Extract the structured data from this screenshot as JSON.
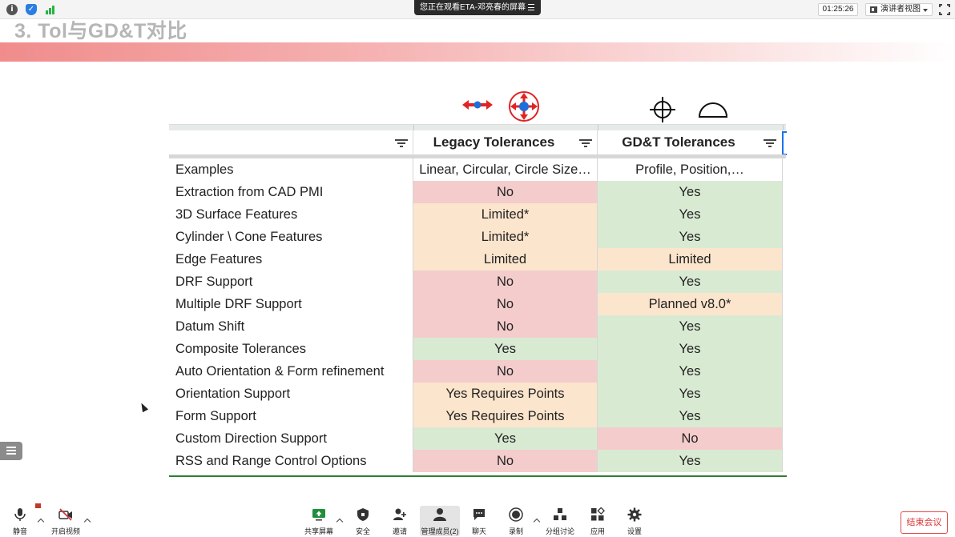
{
  "status_bar": {
    "share_banner": "您正在观看ETA-邓亮春的屏幕",
    "timer": "01:25:26",
    "view_mode": "演讲者视图"
  },
  "slide": {
    "title": "3. Tol与GD&T对比"
  },
  "table": {
    "headers": [
      "",
      "Legacy Tolerances",
      "GD&T Tolerances"
    ],
    "rows": [
      {
        "feature": "Examples",
        "legacy": "Linear, Circular, Circle Size…",
        "gdt": "Profile, Position,…",
        "legacy_status": "none",
        "gdt_status": "none"
      },
      {
        "feature": "Extraction from CAD PMI",
        "legacy": "No",
        "gdt": "Yes",
        "legacy_status": "no",
        "gdt_status": "yes"
      },
      {
        "feature": "3D Surface Features",
        "legacy": "Limited*",
        "gdt": "Yes",
        "legacy_status": "limited",
        "gdt_status": "yes"
      },
      {
        "feature": "Cylinder \\ Cone Features",
        "legacy": "Limited*",
        "gdt": "Yes",
        "legacy_status": "limited",
        "gdt_status": "yes"
      },
      {
        "feature": "Edge Features",
        "legacy": "Limited",
        "gdt": "Limited",
        "legacy_status": "limited",
        "gdt_status": "limited"
      },
      {
        "feature": "DRF Support",
        "legacy": "No",
        "gdt": "Yes",
        "legacy_status": "no",
        "gdt_status": "yes"
      },
      {
        "feature": "Multiple DRF Support",
        "legacy": "No",
        "gdt": "Planned v8.0*",
        "legacy_status": "no",
        "gdt_status": "limited"
      },
      {
        "feature": "Datum Shift",
        "legacy": "No",
        "gdt": "Yes",
        "legacy_status": "no",
        "gdt_status": "yes"
      },
      {
        "feature": "Composite Tolerances",
        "legacy": "Yes",
        "gdt": "Yes",
        "legacy_status": "yes",
        "gdt_status": "yes"
      },
      {
        "feature": "Auto Orientation & Form refinement",
        "legacy": "No",
        "gdt": "Yes",
        "legacy_status": "no",
        "gdt_status": "yes"
      },
      {
        "feature": "Orientation Support",
        "legacy": "Yes Requires Points",
        "gdt": "Yes",
        "legacy_status": "limited",
        "gdt_status": "yes"
      },
      {
        "feature": "Form Support",
        "legacy": "Yes Requires Points",
        "gdt": "Yes",
        "legacy_status": "limited",
        "gdt_status": "yes"
      },
      {
        "feature": "Custom Direction Support",
        "legacy": "Yes",
        "gdt": "No",
        "legacy_status": "yes",
        "gdt_status": "no"
      },
      {
        "feature": "RSS and Range Control Options",
        "legacy": "No",
        "gdt": "Yes",
        "legacy_status": "no",
        "gdt_status": "yes"
      }
    ]
  },
  "status_colors": {
    "yes": "#d9ead3",
    "no": "#f4cccc",
    "limited": "#fce5cd",
    "none": "#ffffff"
  },
  "column_icons": {
    "legacy": [
      "linear-arrows-icon",
      "radial-arrows-icon"
    ],
    "gdt": [
      "position-crosshair-icon",
      "profile-arc-icon"
    ]
  },
  "toolbar": {
    "mute": "静音",
    "video": "开启视频",
    "share": "共享屏幕",
    "security": "安全",
    "invite": "邀请",
    "participants": "管理成员(2)",
    "chat": "聊天",
    "record": "录制",
    "breakout": "分组讨论",
    "apps": "应用",
    "settings": "设置",
    "end": "结束会议"
  }
}
